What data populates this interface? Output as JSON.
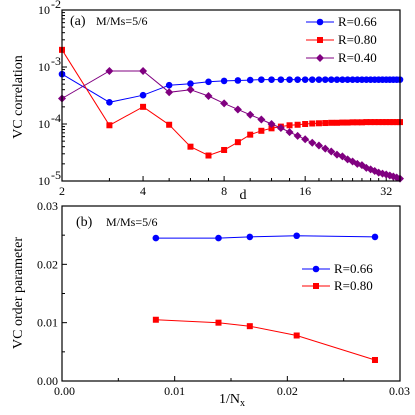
{
  "chart_data": [
    {
      "type": "line",
      "panel_label": "(a)",
      "annotation": "M/Ms=5/6",
      "title": "",
      "xlabel": "d",
      "ylabel": "VC correlation",
      "xscale": "log",
      "yscale": "log",
      "xlim": [
        2,
        36
      ],
      "ylim": [
        1e-05,
        0.01
      ],
      "x_ticks": [
        2,
        4,
        8,
        16,
        32
      ],
      "x_tick_labels": [
        "2",
        "4",
        "8",
        "16",
        "32"
      ],
      "y_ticks": [
        1e-05,
        0.0001,
        0.001,
        0.01
      ],
      "y_tick_labels": [
        "10",
        "10",
        "10",
        "10"
      ],
      "y_tick_exponents": [
        "-5",
        "-4",
        "-3",
        "-2"
      ],
      "legend": "top-right",
      "series": [
        {
          "name": "R=0.66",
          "color": "#0000ff",
          "marker": "circle",
          "x": [
            2,
            3,
            4,
            5,
            6,
            7,
            8,
            9,
            10,
            11,
            12,
            13,
            14,
            15,
            16,
            17,
            18,
            19,
            20,
            21,
            22,
            23,
            24,
            25,
            26,
            27,
            28,
            29,
            30,
            31,
            32,
            33,
            34,
            35,
            36
          ],
          "y": [
            0.00075,
            0.00024,
            0.00032,
            0.00048,
            0.00051,
            0.00055,
            0.00057,
            0.00058,
            0.00059,
            0.0006,
            0.0006,
            0.0006,
            0.0006,
            0.0006,
            0.0006,
            0.0006,
            0.0006,
            0.0006,
            0.0006,
            0.0006,
            0.0006,
            0.0006,
            0.0006,
            0.0006,
            0.0006,
            0.0006,
            0.0006,
            0.0006,
            0.0006,
            0.0006,
            0.0006,
            0.0006,
            0.0006,
            0.0006,
            0.0006
          ]
        },
        {
          "name": "R=0.80",
          "color": "#ff0000",
          "marker": "square",
          "x": [
            2,
            3,
            4,
            5,
            6,
            7,
            8,
            9,
            10,
            11,
            12,
            13,
            14,
            15,
            16,
            17,
            18,
            19,
            20,
            21,
            22,
            23,
            24,
            25,
            26,
            27,
            28,
            29,
            30,
            31,
            32,
            33,
            34,
            35,
            36
          ],
          "y": [
            0.002,
            9.5e-05,
            0.0002,
            9.7e-05,
            4e-05,
            2.8e-05,
            3.5e-05,
            4.8e-05,
            6.5e-05,
            7.6e-05,
            8.4e-05,
            9e-05,
            9.5e-05,
            9.7e-05,
            0.0001,
            0.000102,
            0.000103,
            0.000104,
            0.000105,
            0.000105,
            0.000106,
            0.000106,
            0.000107,
            0.000107,
            0.000107,
            0.000108,
            0.000108,
            0.000108,
            0.000108,
            0.000108,
            0.000108,
            0.000108,
            0.000108,
            0.000108,
            0.000108
          ]
        },
        {
          "name": "R=0.40",
          "color": "#800080",
          "marker": "diamond",
          "x": [
            2,
            3,
            4,
            5,
            6,
            7,
            8,
            9,
            10,
            11,
            12,
            13,
            14,
            15,
            16,
            17,
            18,
            19,
            20,
            21,
            22,
            23,
            24,
            25,
            26,
            27,
            28,
            29,
            30,
            31,
            32,
            33,
            34,
            35,
            36
          ],
          "y": [
            0.00028,
            0.00085,
            0.00085,
            0.00036,
            0.0004,
            0.00031,
            0.00023,
            0.00018,
            0.000145,
            0.00012,
            0.0001,
            8.5e-05,
            7.2e-05,
            6.2e-05,
            5.4e-05,
            4.7e-05,
            4.2e-05,
            3.7e-05,
            3.3e-05,
            2.9e-05,
            2.7e-05,
            2.4e-05,
            2.2e-05,
            2e-05,
            1.9e-05,
            1.7e-05,
            1.6e-05,
            1.5e-05,
            1.4e-05,
            1.35e-05,
            1.3e-05,
            1.25e-05,
            1.2e-05,
            1.15e-05,
            1.1e-05
          ]
        }
      ]
    },
    {
      "type": "line",
      "panel_label": "(b)",
      "annotation": "M/Ms=5/6",
      "title": "",
      "xlabel": "1/N",
      "xlabel_sub": "x",
      "ylabel": "VC order parameter",
      "xlim": [
        0,
        0.03
      ],
      "ylim": [
        0,
        0.03
      ],
      "x_ticks": [
        0,
        0.01,
        0.02,
        0.03
      ],
      "x_tick_labels": [
        "0.00",
        "0.01",
        "0.02",
        "0.03"
      ],
      "y_ticks": [
        0,
        0.01,
        0.02,
        0.03
      ],
      "y_tick_labels": [
        "0.00",
        "0.01",
        "0.02",
        "0.03"
      ],
      "legend": "right",
      "series": [
        {
          "name": "R=0.66",
          "color": "#0000ff",
          "marker": "circle",
          "x": [
            0.00833,
            0.01389,
            0.01667,
            0.02083,
            0.02778
          ],
          "y": [
            0.0245,
            0.0245,
            0.0247,
            0.0249,
            0.0247
          ]
        },
        {
          "name": "R=0.80",
          "color": "#ff0000",
          "marker": "square",
          "x": [
            0.00833,
            0.01389,
            0.01667,
            0.02083,
            0.02778
          ],
          "y": [
            0.0105,
            0.01,
            0.0094,
            0.0078,
            0.0036
          ]
        }
      ]
    }
  ]
}
